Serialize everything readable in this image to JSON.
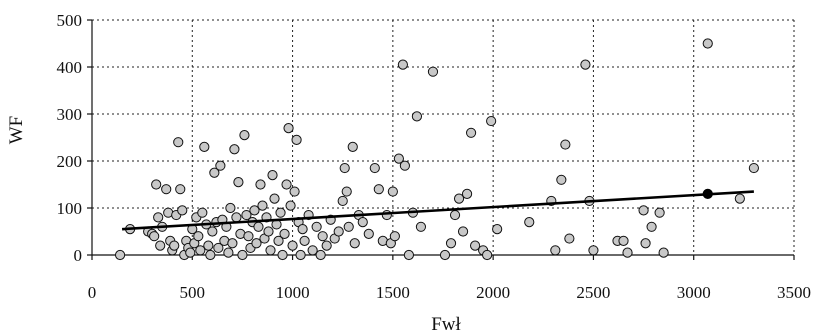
{
  "chart_data": {
    "type": "scatter",
    "xlabel": "Fwł",
    "ylabel": "WF",
    "xlim": [
      0,
      3500
    ],
    "ylim": [
      0,
      500
    ],
    "xticks": [
      0,
      500,
      1000,
      1500,
      2000,
      2500,
      3000,
      3500
    ],
    "yticks": [
      0,
      100,
      200,
      300,
      400,
      500
    ],
    "grid": true,
    "colors": {
      "point_fill": "#c8c8c8",
      "point_stroke": "#111111",
      "highlight_fill": "#000000",
      "trend": "#000000"
    },
    "trendline": {
      "x": [
        150,
        3300
      ],
      "y": [
        55,
        135
      ]
    },
    "highlight_point": {
      "x": 3070,
      "y": 130
    },
    "points": [
      [
        140,
        0
      ],
      [
        190,
        55
      ],
      [
        280,
        50
      ],
      [
        300,
        45
      ],
      [
        310,
        40
      ],
      [
        320,
        150
      ],
      [
        330,
        80
      ],
      [
        340,
        20
      ],
      [
        350,
        60
      ],
      [
        370,
        140
      ],
      [
        380,
        90
      ],
      [
        390,
        30
      ],
      [
        400,
        10
      ],
      [
        410,
        20
      ],
      [
        420,
        85
      ],
      [
        430,
        240
      ],
      [
        440,
        140
      ],
      [
        450,
        95
      ],
      [
        460,
        0
      ],
      [
        470,
        30
      ],
      [
        480,
        15
      ],
      [
        490,
        5
      ],
      [
        500,
        55
      ],
      [
        510,
        25
      ],
      [
        520,
        80
      ],
      [
        530,
        40
      ],
      [
        540,
        10
      ],
      [
        550,
        90
      ],
      [
        560,
        230
      ],
      [
        570,
        65
      ],
      [
        580,
        20
      ],
      [
        590,
        0
      ],
      [
        600,
        50
      ],
      [
        610,
        175
      ],
      [
        620,
        70
      ],
      [
        630,
        15
      ],
      [
        640,
        190
      ],
      [
        650,
        75
      ],
      [
        660,
        30
      ],
      [
        670,
        60
      ],
      [
        680,
        5
      ],
      [
        690,
        100
      ],
      [
        700,
        25
      ],
      [
        710,
        225
      ],
      [
        720,
        80
      ],
      [
        730,
        155
      ],
      [
        740,
        45
      ],
      [
        750,
        0
      ],
      [
        760,
        255
      ],
      [
        770,
        85
      ],
      [
        780,
        40
      ],
      [
        790,
        15
      ],
      [
        800,
        70
      ],
      [
        810,
        95
      ],
      [
        820,
        25
      ],
      [
        830,
        60
      ],
      [
        840,
        150
      ],
      [
        850,
        105
      ],
      [
        860,
        35
      ],
      [
        870,
        80
      ],
      [
        880,
        50
      ],
      [
        890,
        10
      ],
      [
        900,
        170
      ],
      [
        910,
        120
      ],
      [
        920,
        65
      ],
      [
        930,
        30
      ],
      [
        940,
        90
      ],
      [
        950,
        0
      ],
      [
        960,
        45
      ],
      [
        970,
        150
      ],
      [
        980,
        270
      ],
      [
        990,
        105
      ],
      [
        1000,
        20
      ],
      [
        1010,
        135
      ],
      [
        1020,
        245
      ],
      [
        1030,
        70
      ],
      [
        1040,
        0
      ],
      [
        1050,
        55
      ],
      [
        1060,
        30
      ],
      [
        1080,
        85
      ],
      [
        1100,
        10
      ],
      [
        1120,
        60
      ],
      [
        1140,
        0
      ],
      [
        1150,
        40
      ],
      [
        1170,
        20
      ],
      [
        1190,
        75
      ],
      [
        1210,
        35
      ],
      [
        1230,
        50
      ],
      [
        1250,
        115
      ],
      [
        1260,
        185
      ],
      [
        1270,
        135
      ],
      [
        1280,
        60
      ],
      [
        1300,
        230
      ],
      [
        1310,
        25
      ],
      [
        1330,
        85
      ],
      [
        1350,
        70
      ],
      [
        1380,
        45
      ],
      [
        1410,
        185
      ],
      [
        1430,
        140
      ],
      [
        1450,
        30
      ],
      [
        1470,
        85
      ],
      [
        1490,
        25
      ],
      [
        1500,
        135
      ],
      [
        1510,
        40
      ],
      [
        1530,
        205
      ],
      [
        1550,
        405
      ],
      [
        1560,
        190
      ],
      [
        1580,
        0
      ],
      [
        1600,
        90
      ],
      [
        1620,
        295
      ],
      [
        1640,
        60
      ],
      [
        1700,
        390
      ],
      [
        1760,
        0
      ],
      [
        1790,
        25
      ],
      [
        1810,
        85
      ],
      [
        1830,
        120
      ],
      [
        1850,
        50
      ],
      [
        1870,
        130
      ],
      [
        1890,
        260
      ],
      [
        1910,
        20
      ],
      [
        1950,
        10
      ],
      [
        1970,
        0
      ],
      [
        1990,
        285
      ],
      [
        2020,
        55
      ],
      [
        2180,
        70
      ],
      [
        2290,
        115
      ],
      [
        2310,
        10
      ],
      [
        2340,
        160
      ],
      [
        2360,
        235
      ],
      [
        2380,
        35
      ],
      [
        2460,
        405
      ],
      [
        2480,
        115
      ],
      [
        2500,
        10
      ],
      [
        2620,
        30
      ],
      [
        2650,
        30
      ],
      [
        2670,
        5
      ],
      [
        2750,
        95
      ],
      [
        2760,
        25
      ],
      [
        2790,
        60
      ],
      [
        2830,
        90
      ],
      [
        2850,
        5
      ],
      [
        3070,
        450
      ],
      [
        3230,
        120
      ],
      [
        3300,
        185
      ]
    ]
  }
}
